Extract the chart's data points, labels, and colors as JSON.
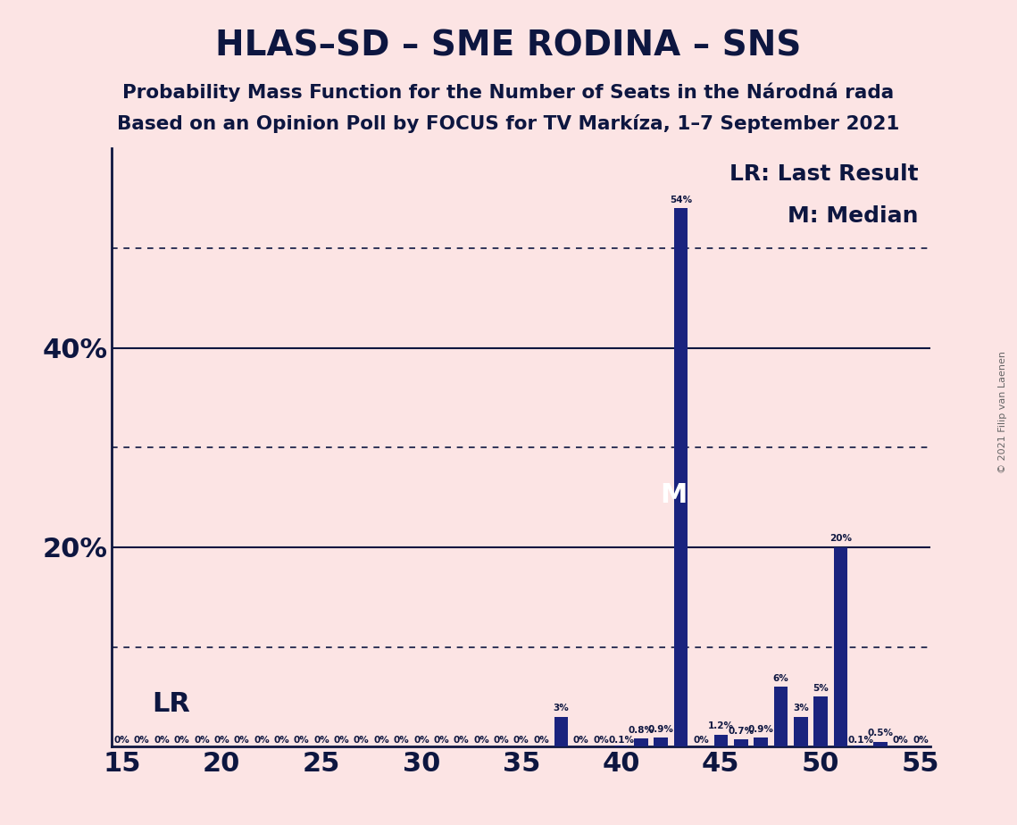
{
  "title": "HLAS–SD – SME RODINA – SNS",
  "subtitle1": "Probability Mass Function for the Number of Seats in the Národná rada",
  "subtitle2": "Based on an Opinion Poll by FOCUS for TV Markíza, 1–7 September 2021",
  "copyright": "© 2021 Filip van Laenen",
  "legend_lr": "LR: Last Result",
  "legend_m": "M: Median",
  "background_color": "#fce4e4",
  "bar_color": "#1a237e",
  "xlim": [
    14.5,
    55.5
  ],
  "ylim": [
    0,
    0.6
  ],
  "x_ticks": [
    15,
    20,
    25,
    30,
    35,
    40,
    45,
    50,
    55
  ],
  "solid_lines": [
    0.2,
    0.4
  ],
  "dotted_lines": [
    0.1,
    0.3,
    0.5
  ],
  "median_seat": 43,
  "median_value": 0.265,
  "seats": [
    15,
    16,
    17,
    18,
    19,
    20,
    21,
    22,
    23,
    24,
    25,
    26,
    27,
    28,
    29,
    30,
    31,
    32,
    33,
    34,
    35,
    36,
    37,
    38,
    39,
    40,
    41,
    42,
    43,
    44,
    45,
    46,
    47,
    48,
    49,
    50,
    51,
    52,
    53,
    54,
    55
  ],
  "values": [
    0.0,
    0.0,
    0.0,
    0.0,
    0.0,
    0.0,
    0.0,
    0.0,
    0.0,
    0.0,
    0.0,
    0.0,
    0.0,
    0.0,
    0.0,
    0.0,
    0.0,
    0.0,
    0.0,
    0.0,
    0.0,
    0.0,
    0.03,
    0.0,
    0.0,
    0.001,
    0.008,
    0.009,
    0.54,
    0.0,
    0.012,
    0.007,
    0.009,
    0.06,
    0.03,
    0.05,
    0.2,
    0.001,
    0.005,
    0.0,
    0.0
  ],
  "bar_labels": [
    "0%",
    "0%",
    "0%",
    "0%",
    "0%",
    "0%",
    "0%",
    "0%",
    "0%",
    "0%",
    "0%",
    "0%",
    "0%",
    "0%",
    "0%",
    "0%",
    "0%",
    "0%",
    "0%",
    "0%",
    "0%",
    "0%",
    "3%",
    "0%",
    "0%",
    "0.1%",
    "0.8%",
    "0.9%",
    "54%",
    "0%",
    "1.2%",
    "0.7%",
    "0.9%",
    "6%",
    "3%",
    "5%",
    "20%",
    "0.1%",
    "0.5%",
    "0%",
    "0%"
  ],
  "label_fontsize": 7.5,
  "title_fontsize": 28,
  "subtitle_fontsize": 15.5,
  "tick_label_fontsize": 22,
  "legend_fontsize": 18,
  "lr_label_fontsize": 22,
  "median_label_fontsize": 22,
  "copyright_fontsize": 8
}
